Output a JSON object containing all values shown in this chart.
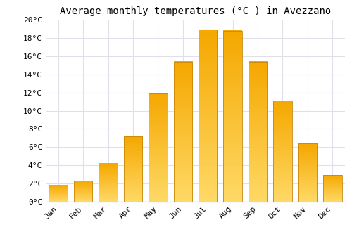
{
  "title": "Average monthly temperatures (°C ) in Avezzano",
  "months": [
    "Jan",
    "Feb",
    "Mar",
    "Apr",
    "May",
    "Jun",
    "Jul",
    "Aug",
    "Sep",
    "Oct",
    "Nov",
    "Dec"
  ],
  "temperatures": [
    1.8,
    2.3,
    4.2,
    7.2,
    11.9,
    15.4,
    18.9,
    18.8,
    15.4,
    11.1,
    6.4,
    2.9
  ],
  "bar_color_top": "#F5A800",
  "bar_color_bottom": "#FFD966",
  "bar_edge_color": "#C8860A",
  "ylim": [
    0,
    20
  ],
  "yticks": [
    0,
    2,
    4,
    6,
    8,
    10,
    12,
    14,
    16,
    18,
    20
  ],
  "background_color": "#FFFFFF",
  "plot_bg_color": "#FFFFFF",
  "grid_color": "#E0E0E8",
  "title_fontsize": 10,
  "tick_fontsize": 8,
  "font_family": "monospace"
}
